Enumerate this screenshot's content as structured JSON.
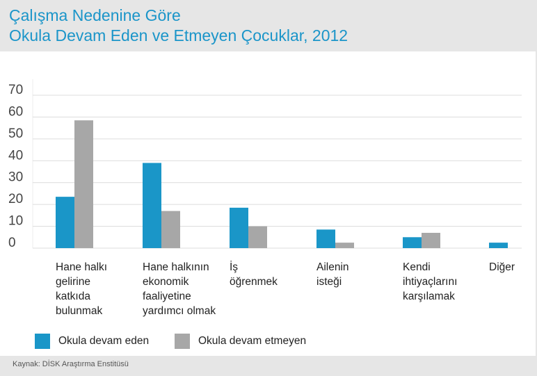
{
  "title_line1": "Çalışma Nedenine Göre",
  "title_line2": "Okula Devam Eden ve Etmeyen Çocuklar, 2012",
  "source": "Kaynak: DİSK Araştırma Enstitüsü",
  "colors": {
    "series1": "#1a96c8",
    "series2": "#a7a7a7",
    "title": "#1b95c9",
    "grid": "#dcdcdc"
  },
  "chart_data": {
    "type": "bar",
    "title": "Çalışma Nedenine Göre Okula Devam Eden ve Etmeyen Çocuklar, 2012",
    "xlabel": "",
    "ylabel": "",
    "ylim": [
      0,
      70
    ],
    "yticks": [
      0,
      10,
      20,
      30,
      40,
      50,
      60,
      70
    ],
    "grid": true,
    "legend_position": "bottom-left",
    "categories": [
      "Hane halkı\ngelirine\nkatkıda\nbulunmak",
      "Hane halkının\nekonomik\nfaaliyetine\nyardımcı olmak",
      "İş\nöğrenmek",
      "Ailenin\nisteği",
      "Kendi\nihtiyaçlarını\nkarşılamak",
      "Diğer"
    ],
    "series": [
      {
        "name": "Okula devam eden",
        "values": [
          23.5,
          39,
          18.5,
          8.5,
          5,
          2.5
        ]
      },
      {
        "name": "Okula devam etmeyen",
        "values": [
          58.5,
          17,
          10,
          2.5,
          7,
          0
        ]
      }
    ]
  }
}
